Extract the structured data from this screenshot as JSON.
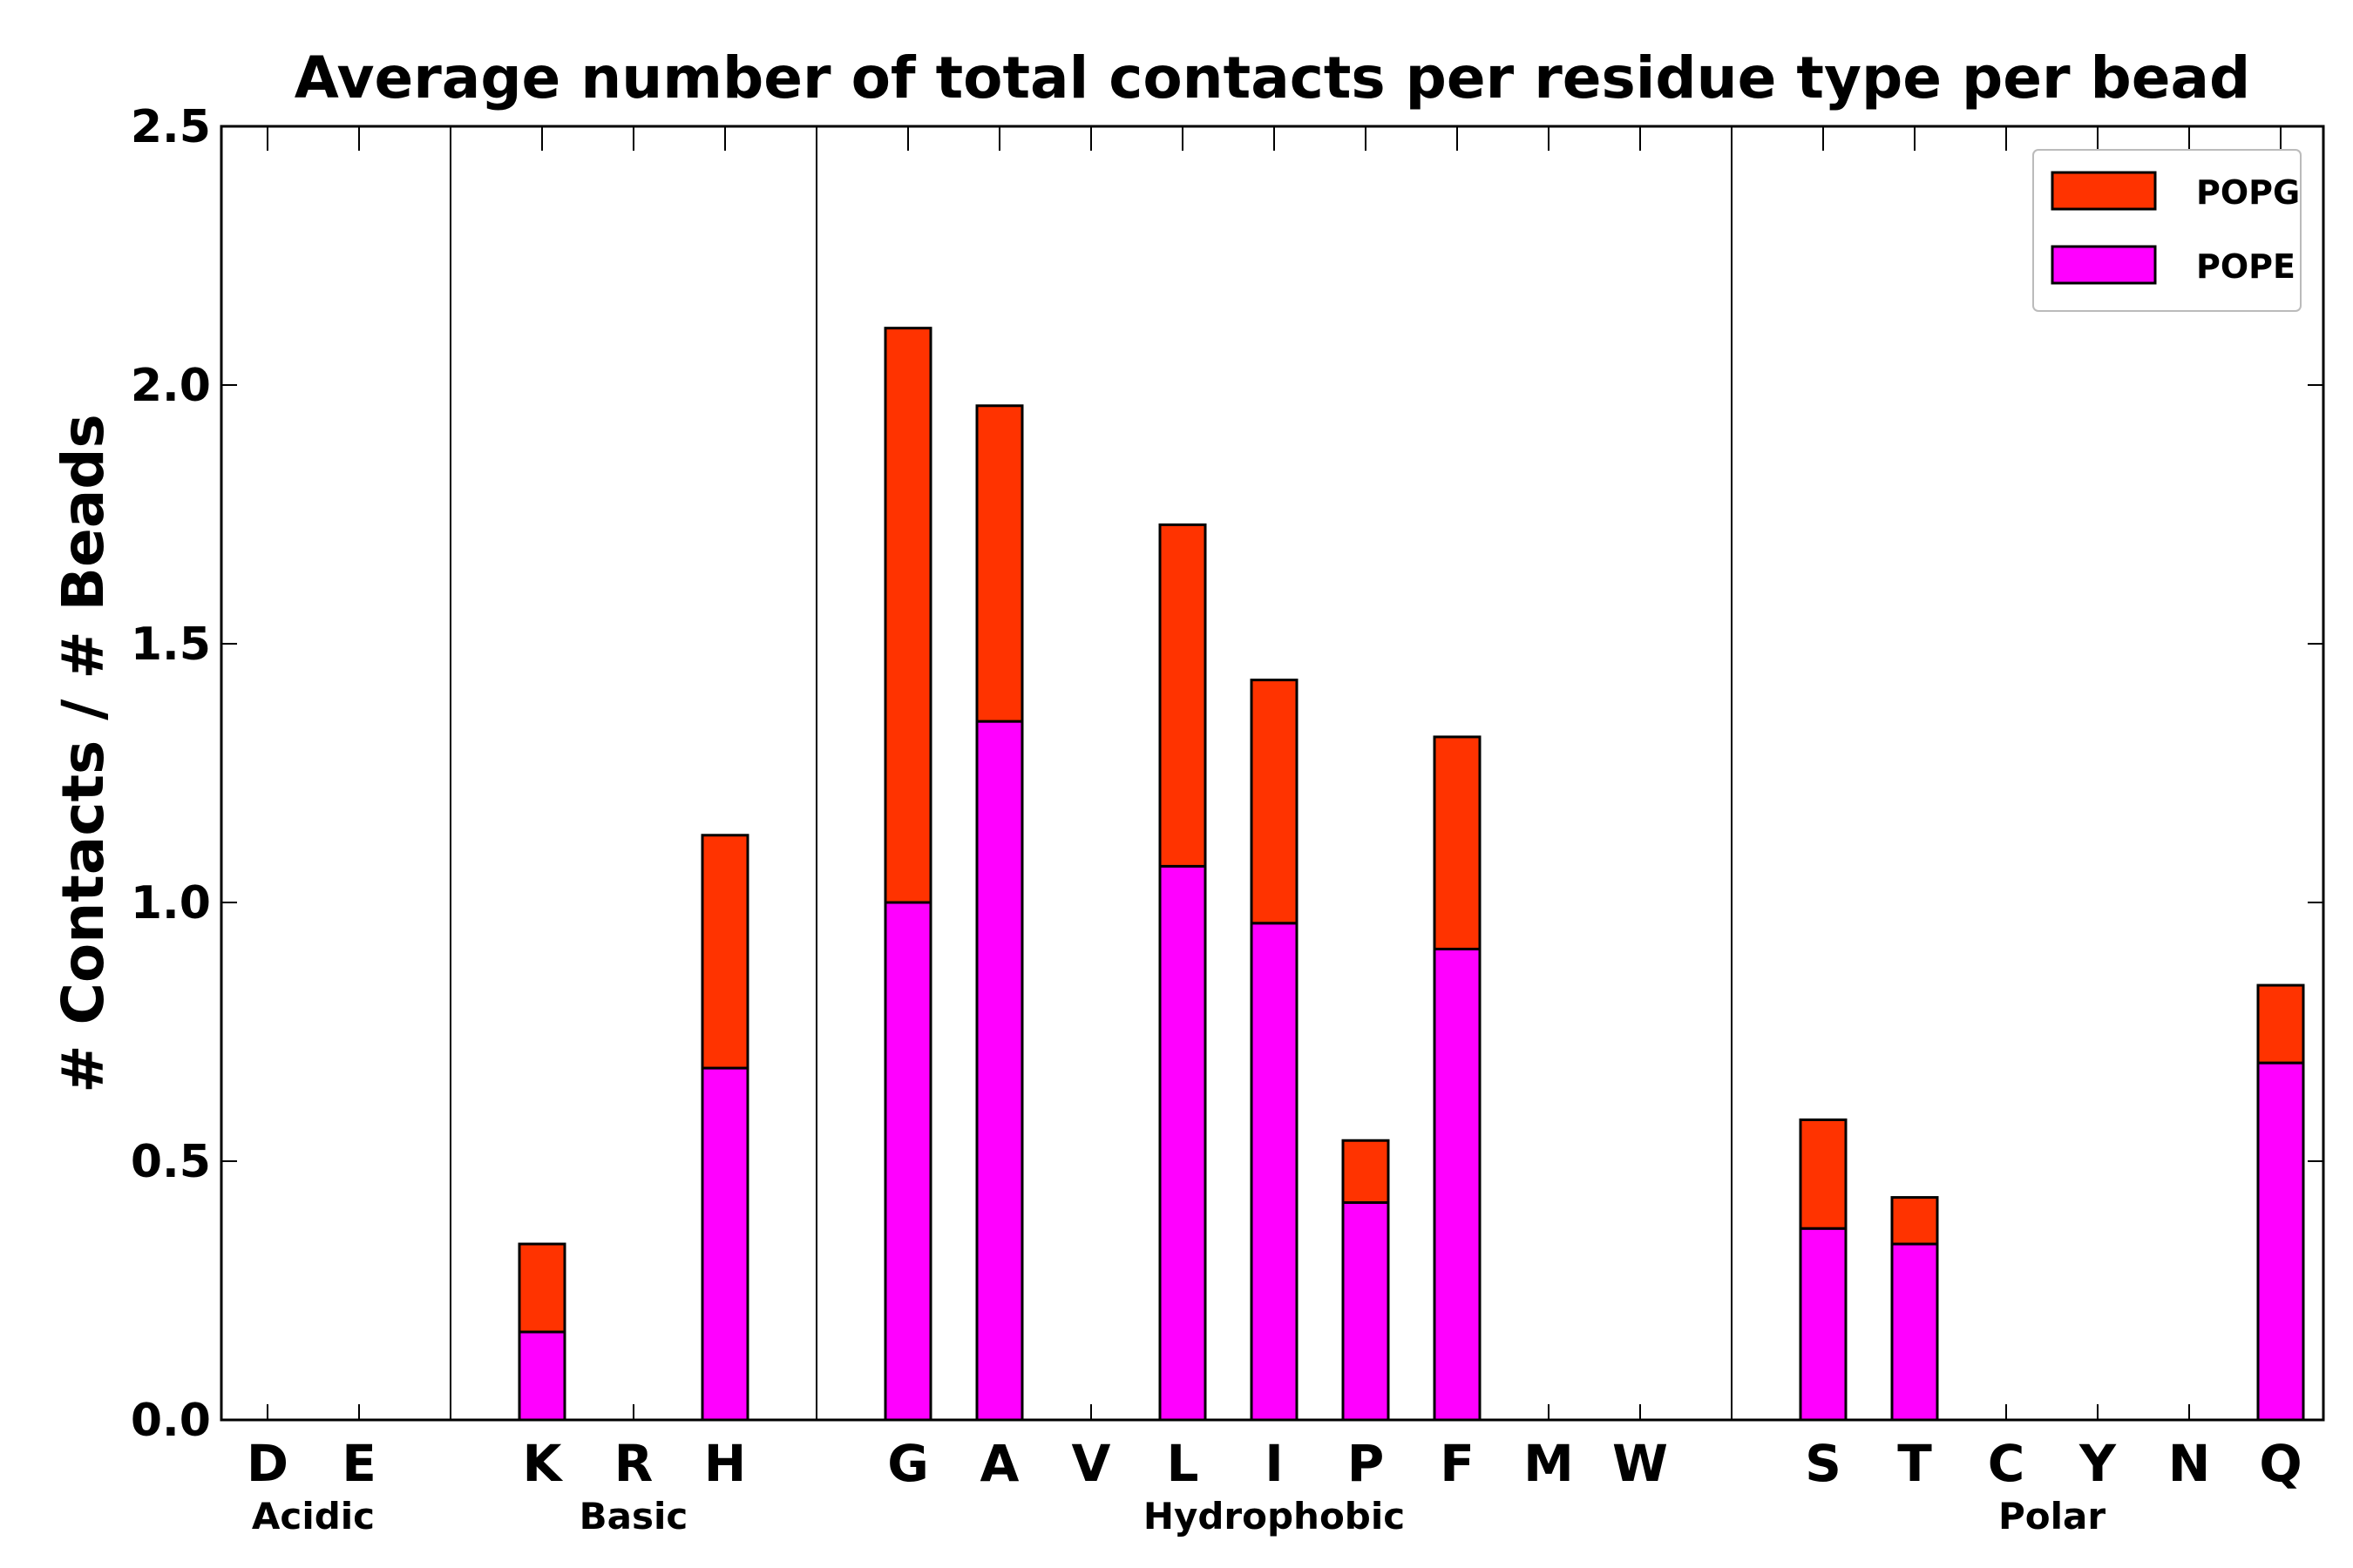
{
  "chart_data": {
    "type": "bar",
    "stacked": true,
    "title": "Average number of total contacts per residue type per bead",
    "xlabel": "",
    "ylabel": "# Contacts / # Beads",
    "ylim": [
      0,
      2.5
    ],
    "yticks": [
      "0.0",
      "0.5",
      "1.0",
      "1.5",
      "2.0",
      "2.5"
    ],
    "categories": [
      "D",
      "E",
      "",
      "K",
      "R",
      "H",
      "",
      "G",
      "A",
      "V",
      "L",
      "I",
      "P",
      "F",
      "M",
      "W",
      "",
      "S",
      "T",
      "C",
      "Y",
      "N",
      "Q"
    ],
    "groups": [
      {
        "label": "Acidic",
        "members": [
          "D",
          "E"
        ]
      },
      {
        "label": "Basic",
        "members": [
          "K",
          "R",
          "H"
        ]
      },
      {
        "label": "Hydrophobic",
        "members": [
          "G",
          "A",
          "V",
          "L",
          "I",
          "P",
          "F",
          "M",
          "W"
        ]
      },
      {
        "label": "Polar",
        "members": [
          "S",
          "T",
          "C",
          "Y",
          "N",
          "Q"
        ]
      }
    ],
    "series": [
      {
        "name": "POPE",
        "color": "#ff00ff",
        "values": [
          0,
          0,
          0,
          0.17,
          0,
          0.68,
          0,
          1.0,
          1.35,
          0,
          1.07,
          0.96,
          0.42,
          0.91,
          0,
          0,
          0,
          0.37,
          0.34,
          0,
          0,
          0,
          0.69
        ]
      },
      {
        "name": "POPG",
        "color": "#ff3300",
        "values": [
          0,
          0,
          0,
          0.17,
          0,
          0.45,
          0,
          1.11,
          0.61,
          0,
          0.66,
          0.47,
          0.12,
          0.41,
          0,
          0,
          0,
          0.21,
          0.09,
          0,
          0,
          0,
          0.15
        ]
      }
    ],
    "legend": {
      "position": "top-right",
      "entries": [
        "POPG",
        "POPE"
      ]
    },
    "grid": false
  }
}
